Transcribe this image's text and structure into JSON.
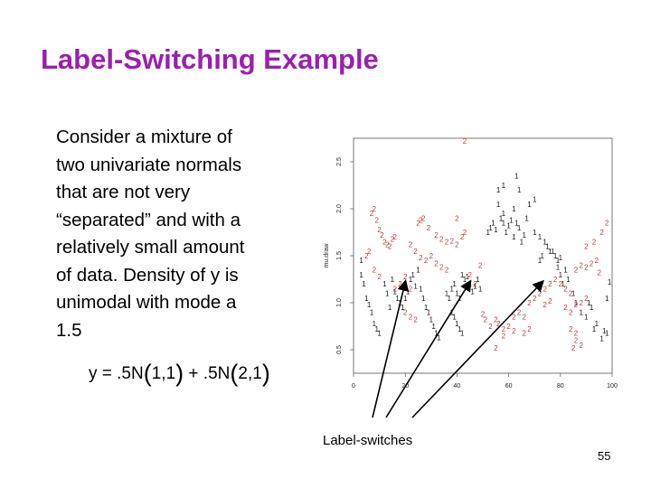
{
  "slide": {
    "title": "Label-Switching Example",
    "body_lines": [
      "Consider a mixture of",
      "two univariate normals",
      "that are not very",
      "“separated” and with a",
      "relatively small amount",
      "of data. Density of y is",
      "unimodal with mode a",
      "1.5"
    ],
    "formula": {
      "lhs": "y = .5N",
      "open1": "(",
      "args1": "1,1",
      "close1": ")",
      "mid": " + .5N",
      "open2": "(",
      "args2": "2,1",
      "close2": ")"
    },
    "annotation": "Label-switches",
    "page_number": "55"
  },
  "colors": {
    "title": "#9b1fb0",
    "series_1": "#111111",
    "series_2": "#c23a3a",
    "arrow": "#000000"
  },
  "chart_data": {
    "type": "scatter",
    "title": "",
    "xlabel": "",
    "ylabel": "mu.draw",
    "xlim": [
      0,
      100
    ],
    "ylim": [
      0.25,
      2.75
    ],
    "x_ticks": [
      0,
      20,
      40,
      60,
      80,
      100
    ],
    "x_tick_labels": [
      "0",
      "20",
      "40",
      "60",
      "80",
      "100"
    ],
    "y_ticks": [
      0.5,
      1.0,
      1.5,
      2.0,
      2.5
    ],
    "y_tick_labels": [
      "0.5",
      "1.0",
      "1.5",
      "2.0",
      "2.5"
    ],
    "marker": "text-label",
    "series": [
      {
        "marker_text": "1",
        "color": "#111111",
        "points": [
          [
            3,
            1.45
          ],
          [
            3,
            1.3
          ],
          [
            4,
            1.2
          ],
          [
            5,
            1.05
          ],
          [
            6,
            0.98
          ],
          [
            7,
            0.9
          ],
          [
            8,
            0.78
          ],
          [
            9,
            0.72
          ],
          [
            10,
            0.68
          ],
          [
            12,
            1.2
          ],
          [
            13,
            1.1
          ],
          [
            14,
            0.95
          ],
          [
            15,
            1.25
          ],
          [
            16,
            1.12
          ],
          [
            17,
            1.05
          ],
          [
            18,
            1.0
          ],
          [
            19,
            0.95
          ],
          [
            20,
            1.05
          ],
          [
            21,
            1.12
          ],
          [
            22,
            1.25
          ],
          [
            23,
            1.3
          ],
          [
            24,
            1.18
          ],
          [
            25,
            1.35
          ],
          [
            26,
            1.15
          ],
          [
            27,
            1.05
          ],
          [
            28,
            0.95
          ],
          [
            29,
            0.9
          ],
          [
            30,
            0.82
          ],
          [
            31,
            0.75
          ],
          [
            32,
            0.68
          ],
          [
            33,
            0.63
          ],
          [
            36,
            1.1
          ],
          [
            37,
            1.05
          ],
          [
            38,
            1.15
          ],
          [
            39,
            1.2
          ],
          [
            40,
            1.1
          ],
          [
            41,
            1.05
          ],
          [
            42,
            1.3
          ],
          [
            43,
            1.25
          ],
          [
            44,
            1.28
          ],
          [
            45,
            1.2
          ],
          [
            46,
            1.12
          ],
          [
            47,
            1.18
          ],
          [
            48,
            1.25
          ],
          [
            49,
            1.15
          ],
          [
            38,
            0.9
          ],
          [
            39,
            0.85
          ],
          [
            40,
            0.78
          ],
          [
            41,
            0.72
          ],
          [
            42,
            0.68
          ],
          [
            52,
            1.75
          ],
          [
            53,
            1.8
          ],
          [
            54,
            1.85
          ],
          [
            55,
            1.78
          ],
          [
            56,
            2.05
          ],
          [
            57,
            1.9
          ],
          [
            58,
            1.85
          ],
          [
            59,
            1.75
          ],
          [
            60,
            1.82
          ],
          [
            61,
            1.88
          ],
          [
            62,
            1.7
          ],
          [
            63,
            1.85
          ],
          [
            64,
            1.8
          ],
          [
            65,
            1.65
          ],
          [
            66,
            1.72
          ],
          [
            67,
            1.9
          ],
          [
            58,
            1.95
          ],
          [
            62,
            2.0
          ],
          [
            68,
            2.05
          ],
          [
            70,
            2.1
          ],
          [
            64,
            2.2
          ],
          [
            63,
            2.35
          ],
          [
            56,
            2.2
          ],
          [
            58,
            2.25
          ],
          [
            70,
            1.75
          ],
          [
            72,
            1.7
          ],
          [
            74,
            1.65
          ],
          [
            76,
            1.55
          ],
          [
            78,
            1.5
          ],
          [
            79,
            1.38
          ],
          [
            80,
            1.3
          ],
          [
            81,
            1.2
          ],
          [
            82,
            1.35
          ],
          [
            83,
            1.25
          ],
          [
            85,
            1.1
          ],
          [
            86,
            1.0
          ],
          [
            88,
            0.9
          ],
          [
            90,
            0.85
          ],
          [
            91,
            1.0
          ],
          [
            92,
            0.95
          ],
          [
            93,
            0.72
          ],
          [
            94,
            0.78
          ],
          [
            96,
            0.62
          ],
          [
            97,
            0.7
          ],
          [
            98,
            0.68
          ],
          [
            98,
            1.05
          ],
          [
            99,
            1.22
          ],
          [
            72,
            1.45
          ],
          [
            73,
            1.5
          ],
          [
            75,
            1.6
          ],
          [
            77,
            1.55
          ],
          [
            79,
            1.45
          ],
          [
            80,
            1.48
          ]
        ]
      },
      {
        "marker_text": "2",
        "color": "#c23a3a",
        "points": [
          [
            43,
            2.72
          ],
          [
            7,
            1.95
          ],
          [
            8,
            2.0
          ],
          [
            9,
            1.88
          ],
          [
            10,
            1.78
          ],
          [
            11,
            1.72
          ],
          [
            12,
            1.65
          ],
          [
            13,
            1.62
          ],
          [
            14,
            1.6
          ],
          [
            15,
            1.68
          ],
          [
            16,
            1.7
          ],
          [
            5,
            1.5
          ],
          [
            6,
            1.55
          ],
          [
            8,
            1.35
          ],
          [
            10,
            1.28
          ],
          [
            25,
            1.85
          ],
          [
            26,
            1.88
          ],
          [
            27,
            1.9
          ],
          [
            29,
            1.8
          ],
          [
            32,
            1.72
          ],
          [
            34,
            1.68
          ],
          [
            36,
            1.65
          ],
          [
            38,
            1.66
          ],
          [
            40,
            1.62
          ],
          [
            42,
            1.7
          ],
          [
            22,
            1.62
          ],
          [
            24,
            1.55
          ],
          [
            26,
            1.48
          ],
          [
            28,
            1.45
          ],
          [
            30,
            1.5
          ],
          [
            32,
            1.42
          ],
          [
            34,
            1.38
          ],
          [
            36,
            1.35
          ],
          [
            20,
            1.28
          ],
          [
            18,
            1.2
          ],
          [
            16,
            1.15
          ],
          [
            22,
            1.15
          ],
          [
            40,
            1.9
          ],
          [
            43,
            1.75
          ],
          [
            45,
            1.3
          ],
          [
            47,
            1.2
          ],
          [
            49,
            1.4
          ],
          [
            20,
            0.9
          ],
          [
            22,
            0.85
          ],
          [
            24,
            0.82
          ],
          [
            50,
            0.88
          ],
          [
            51,
            0.82
          ],
          [
            53,
            0.75
          ],
          [
            55,
            0.82
          ],
          [
            56,
            0.78
          ],
          [
            58,
            0.72
          ],
          [
            60,
            0.75
          ],
          [
            62,
            0.85
          ],
          [
            64,
            0.9
          ],
          [
            66,
            0.85
          ],
          [
            55,
            0.52
          ],
          [
            58,
            0.65
          ],
          [
            62,
            0.7
          ],
          [
            68,
            1.0
          ],
          [
            70,
            1.05
          ],
          [
            72,
            1.1
          ],
          [
            74,
            1.15
          ],
          [
            76,
            1.2
          ],
          [
            78,
            1.25
          ],
          [
            80,
            1.2
          ],
          [
            82,
            1.15
          ],
          [
            84,
            1.1
          ],
          [
            86,
            1.35
          ],
          [
            88,
            1.4
          ],
          [
            90,
            1.38
          ],
          [
            92,
            1.42
          ],
          [
            94,
            1.45
          ],
          [
            95,
            1.32
          ],
          [
            90,
            1.6
          ],
          [
            93,
            1.65
          ],
          [
            96,
            1.75
          ],
          [
            98,
            1.85
          ],
          [
            82,
            0.95
          ],
          [
            84,
            0.9
          ],
          [
            86,
            0.98
          ],
          [
            88,
            1.0
          ],
          [
            90,
            1.05
          ],
          [
            84,
            0.72
          ],
          [
            86,
            0.68
          ],
          [
            85,
            0.52
          ],
          [
            88,
            0.55
          ],
          [
            86,
            0.6
          ],
          [
            74,
            0.98
          ],
          [
            76,
            1.02
          ],
          [
            66,
            0.68
          ],
          [
            68,
            0.72
          ]
        ]
      }
    ],
    "arrows_from_caption_to_x": [
      20,
      45,
      73
    ]
  }
}
